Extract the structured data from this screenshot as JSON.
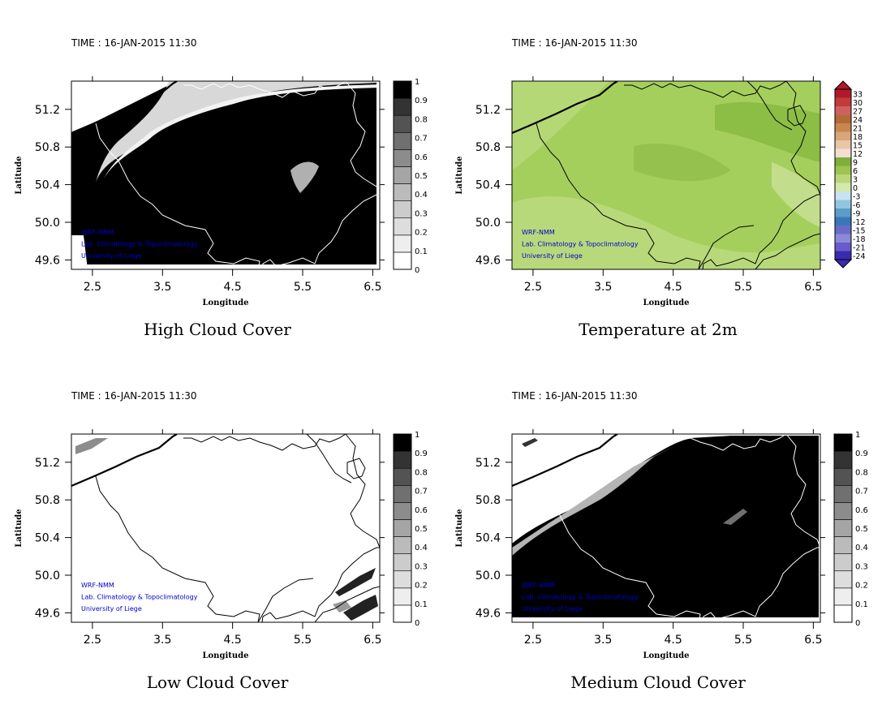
{
  "chart_data": [
    {
      "type": "heatmap",
      "time_label": "TIME : 16-JAN-2015 11:30",
      "title": "High Cloud Cover",
      "xlabel": "Longitude",
      "ylabel": "Latitude",
      "xticks": [
        "2.5",
        "3.5",
        "4.5",
        "5.5",
        "6.5"
      ],
      "yticks": [
        "51.2",
        "50.8",
        "50.4",
        "50.0",
        "49.6"
      ],
      "xlim": [
        2.2,
        6.6
      ],
      "ylim": [
        49.5,
        51.5
      ],
      "colorbar": {
        "levels": [
          "0",
          "0.1",
          "0.2",
          "0.3",
          "0.4",
          "0.5",
          "0.6",
          "0.7",
          "0.8",
          "0.9",
          "1"
        ],
        "colors": [
          "#ffffff",
          "#eeeeee",
          "#dddddd",
          "#cccccc",
          "#bbbbbb",
          "#a5a5a5",
          "#8c8c8c",
          "#707070",
          "#535353",
          "#333333",
          "#000000"
        ]
      },
      "credits": [
        "WRF-NMM",
        "Lab. Climatology & Topoclimatology",
        "University of Liege"
      ]
    },
    {
      "type": "heatmap",
      "time_label": "TIME : 16-JAN-2015 11:30",
      "title": "Temperature at 2m",
      "xlabel": "Longitude",
      "ylabel": "Latitude",
      "xticks": [
        "2.5",
        "3.5",
        "4.5",
        "5.5",
        "6.5"
      ],
      "yticks": [
        "51.2",
        "50.8",
        "50.4",
        "50.0",
        "49.6"
      ],
      "xlim": [
        2.2,
        6.6
      ],
      "ylim": [
        49.5,
        51.5
      ],
      "colorbar": {
        "levels": [
          "33",
          "30",
          "27",
          "24",
          "21",
          "18",
          "15",
          "12",
          "9",
          "6",
          "3",
          "0",
          "-3",
          "-6",
          "-9",
          "-12",
          "-15",
          "-18",
          "-21",
          "-24"
        ],
        "colors": [
          "#b2182b",
          "#c23a3a",
          "#d06060",
          "#b36a3a",
          "#c8874f",
          "#d9a57a",
          "#e8c6a8",
          "#f3dfcf",
          "#7fae3a",
          "#9dc44f",
          "#b9d77a",
          "#d4e8a8",
          "#c8e4f2",
          "#93c5e0",
          "#5a9ec8",
          "#3a78b5",
          "#6a6cc8",
          "#8a8ad8",
          "#6a5acd",
          "#3a2ab0"
        ]
      },
      "credits": [
        "WRF-NMM",
        "Lab. Climatology & Topoclimatology",
        "University of Liege"
      ]
    },
    {
      "type": "heatmap",
      "time_label": "TIME : 16-JAN-2015 11:30",
      "title": "Low Cloud Cover",
      "xlabel": "Longitude",
      "ylabel": "Latitude",
      "xticks": [
        "2.5",
        "3.5",
        "4.5",
        "5.5",
        "6.5"
      ],
      "yticks": [
        "51.2",
        "50.8",
        "50.4",
        "50.0",
        "49.6"
      ],
      "xlim": [
        2.2,
        6.6
      ],
      "ylim": [
        49.5,
        51.5
      ],
      "colorbar": {
        "levels": [
          "0",
          "0.1",
          "0.2",
          "0.3",
          "0.4",
          "0.5",
          "0.6",
          "0.7",
          "0.8",
          "0.9",
          "1"
        ],
        "colors": [
          "#ffffff",
          "#eeeeee",
          "#dddddd",
          "#cccccc",
          "#bbbbbb",
          "#a5a5a5",
          "#8c8c8c",
          "#707070",
          "#535353",
          "#333333",
          "#000000"
        ]
      },
      "credits": [
        "WRF-NMM",
        "Lab. Climatology & Topoclimatology",
        "University of Liege"
      ]
    },
    {
      "type": "heatmap",
      "time_label": "TIME : 16-JAN-2015 11:30",
      "title": "Medium Cloud Cover",
      "xlabel": "Longitude",
      "ylabel": "Latitude",
      "xticks": [
        "2.5",
        "3.5",
        "4.5",
        "5.5",
        "6.5"
      ],
      "yticks": [
        "51.2",
        "50.8",
        "50.4",
        "50.0",
        "49.6"
      ],
      "xlim": [
        2.2,
        6.6
      ],
      "ylim": [
        49.5,
        51.5
      ],
      "colorbar": {
        "levels": [
          "0",
          "0.1",
          "0.2",
          "0.3",
          "0.4",
          "0.5",
          "0.6",
          "0.7",
          "0.8",
          "0.9",
          "1"
        ],
        "colors": [
          "#ffffff",
          "#eeeeee",
          "#dddddd",
          "#cccccc",
          "#bbbbbb",
          "#a5a5a5",
          "#8c8c8c",
          "#707070",
          "#535353",
          "#333333",
          "#000000"
        ]
      },
      "credits": [
        "WRF-NMM",
        "Lab. Climatology & Topoclimatology",
        "University of Liege"
      ]
    }
  ]
}
